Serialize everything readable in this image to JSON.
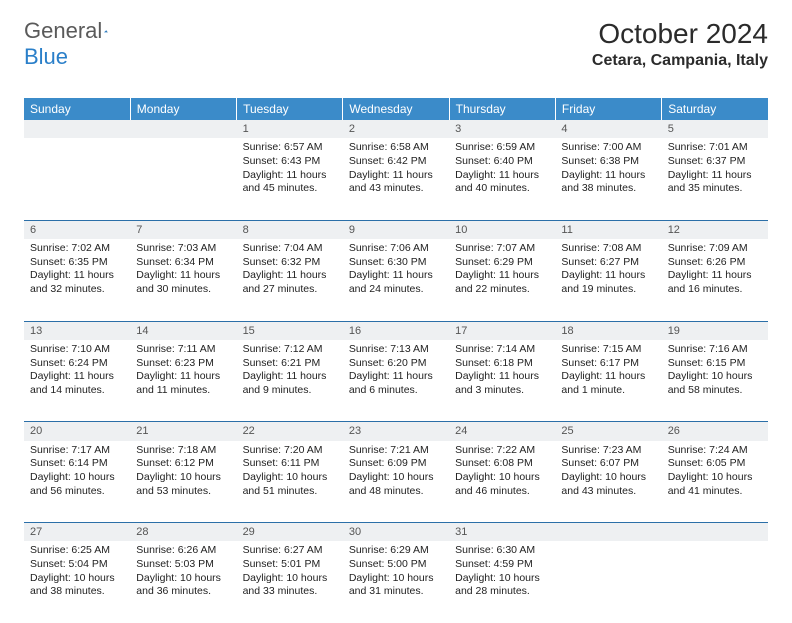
{
  "logo": {
    "general": "General",
    "blue": "Blue"
  },
  "title": "October 2024",
  "location": "Cetara, Campania, Italy",
  "colors": {
    "header_bg": "#3b8bc9",
    "header_text": "#ffffff",
    "daynum_bg": "#eef0f2",
    "border": "#2b6fa8",
    "logo_blue": "#2a7fc9",
    "logo_gray": "#5a5a5a"
  },
  "weekdays": [
    "Sunday",
    "Monday",
    "Tuesday",
    "Wednesday",
    "Thursday",
    "Friday",
    "Saturday"
  ],
  "weeks": [
    [
      null,
      null,
      {
        "n": "1",
        "sr": "Sunrise: 6:57 AM",
        "ss": "Sunset: 6:43 PM",
        "d1": "Daylight: 11 hours",
        "d2": "and 45 minutes."
      },
      {
        "n": "2",
        "sr": "Sunrise: 6:58 AM",
        "ss": "Sunset: 6:42 PM",
        "d1": "Daylight: 11 hours",
        "d2": "and 43 minutes."
      },
      {
        "n": "3",
        "sr": "Sunrise: 6:59 AM",
        "ss": "Sunset: 6:40 PM",
        "d1": "Daylight: 11 hours",
        "d2": "and 40 minutes."
      },
      {
        "n": "4",
        "sr": "Sunrise: 7:00 AM",
        "ss": "Sunset: 6:38 PM",
        "d1": "Daylight: 11 hours",
        "d2": "and 38 minutes."
      },
      {
        "n": "5",
        "sr": "Sunrise: 7:01 AM",
        "ss": "Sunset: 6:37 PM",
        "d1": "Daylight: 11 hours",
        "d2": "and 35 minutes."
      }
    ],
    [
      {
        "n": "6",
        "sr": "Sunrise: 7:02 AM",
        "ss": "Sunset: 6:35 PM",
        "d1": "Daylight: 11 hours",
        "d2": "and 32 minutes."
      },
      {
        "n": "7",
        "sr": "Sunrise: 7:03 AM",
        "ss": "Sunset: 6:34 PM",
        "d1": "Daylight: 11 hours",
        "d2": "and 30 minutes."
      },
      {
        "n": "8",
        "sr": "Sunrise: 7:04 AM",
        "ss": "Sunset: 6:32 PM",
        "d1": "Daylight: 11 hours",
        "d2": "and 27 minutes."
      },
      {
        "n": "9",
        "sr": "Sunrise: 7:06 AM",
        "ss": "Sunset: 6:30 PM",
        "d1": "Daylight: 11 hours",
        "d2": "and 24 minutes."
      },
      {
        "n": "10",
        "sr": "Sunrise: 7:07 AM",
        "ss": "Sunset: 6:29 PM",
        "d1": "Daylight: 11 hours",
        "d2": "and 22 minutes."
      },
      {
        "n": "11",
        "sr": "Sunrise: 7:08 AM",
        "ss": "Sunset: 6:27 PM",
        "d1": "Daylight: 11 hours",
        "d2": "and 19 minutes."
      },
      {
        "n": "12",
        "sr": "Sunrise: 7:09 AM",
        "ss": "Sunset: 6:26 PM",
        "d1": "Daylight: 11 hours",
        "d2": "and 16 minutes."
      }
    ],
    [
      {
        "n": "13",
        "sr": "Sunrise: 7:10 AM",
        "ss": "Sunset: 6:24 PM",
        "d1": "Daylight: 11 hours",
        "d2": "and 14 minutes."
      },
      {
        "n": "14",
        "sr": "Sunrise: 7:11 AM",
        "ss": "Sunset: 6:23 PM",
        "d1": "Daylight: 11 hours",
        "d2": "and 11 minutes."
      },
      {
        "n": "15",
        "sr": "Sunrise: 7:12 AM",
        "ss": "Sunset: 6:21 PM",
        "d1": "Daylight: 11 hours",
        "d2": "and 9 minutes."
      },
      {
        "n": "16",
        "sr": "Sunrise: 7:13 AM",
        "ss": "Sunset: 6:20 PM",
        "d1": "Daylight: 11 hours",
        "d2": "and 6 minutes."
      },
      {
        "n": "17",
        "sr": "Sunrise: 7:14 AM",
        "ss": "Sunset: 6:18 PM",
        "d1": "Daylight: 11 hours",
        "d2": "and 3 minutes."
      },
      {
        "n": "18",
        "sr": "Sunrise: 7:15 AM",
        "ss": "Sunset: 6:17 PM",
        "d1": "Daylight: 11 hours",
        "d2": "and 1 minute."
      },
      {
        "n": "19",
        "sr": "Sunrise: 7:16 AM",
        "ss": "Sunset: 6:15 PM",
        "d1": "Daylight: 10 hours",
        "d2": "and 58 minutes."
      }
    ],
    [
      {
        "n": "20",
        "sr": "Sunrise: 7:17 AM",
        "ss": "Sunset: 6:14 PM",
        "d1": "Daylight: 10 hours",
        "d2": "and 56 minutes."
      },
      {
        "n": "21",
        "sr": "Sunrise: 7:18 AM",
        "ss": "Sunset: 6:12 PM",
        "d1": "Daylight: 10 hours",
        "d2": "and 53 minutes."
      },
      {
        "n": "22",
        "sr": "Sunrise: 7:20 AM",
        "ss": "Sunset: 6:11 PM",
        "d1": "Daylight: 10 hours",
        "d2": "and 51 minutes."
      },
      {
        "n": "23",
        "sr": "Sunrise: 7:21 AM",
        "ss": "Sunset: 6:09 PM",
        "d1": "Daylight: 10 hours",
        "d2": "and 48 minutes."
      },
      {
        "n": "24",
        "sr": "Sunrise: 7:22 AM",
        "ss": "Sunset: 6:08 PM",
        "d1": "Daylight: 10 hours",
        "d2": "and 46 minutes."
      },
      {
        "n": "25",
        "sr": "Sunrise: 7:23 AM",
        "ss": "Sunset: 6:07 PM",
        "d1": "Daylight: 10 hours",
        "d2": "and 43 minutes."
      },
      {
        "n": "26",
        "sr": "Sunrise: 7:24 AM",
        "ss": "Sunset: 6:05 PM",
        "d1": "Daylight: 10 hours",
        "d2": "and 41 minutes."
      }
    ],
    [
      {
        "n": "27",
        "sr": "Sunrise: 6:25 AM",
        "ss": "Sunset: 5:04 PM",
        "d1": "Daylight: 10 hours",
        "d2": "and 38 minutes."
      },
      {
        "n": "28",
        "sr": "Sunrise: 6:26 AM",
        "ss": "Sunset: 5:03 PM",
        "d1": "Daylight: 10 hours",
        "d2": "and 36 minutes."
      },
      {
        "n": "29",
        "sr": "Sunrise: 6:27 AM",
        "ss": "Sunset: 5:01 PM",
        "d1": "Daylight: 10 hours",
        "d2": "and 33 minutes."
      },
      {
        "n": "30",
        "sr": "Sunrise: 6:29 AM",
        "ss": "Sunset: 5:00 PM",
        "d1": "Daylight: 10 hours",
        "d2": "and 31 minutes."
      },
      {
        "n": "31",
        "sr": "Sunrise: 6:30 AM",
        "ss": "Sunset: 4:59 PM",
        "d1": "Daylight: 10 hours",
        "d2": "and 28 minutes."
      },
      null,
      null
    ]
  ]
}
